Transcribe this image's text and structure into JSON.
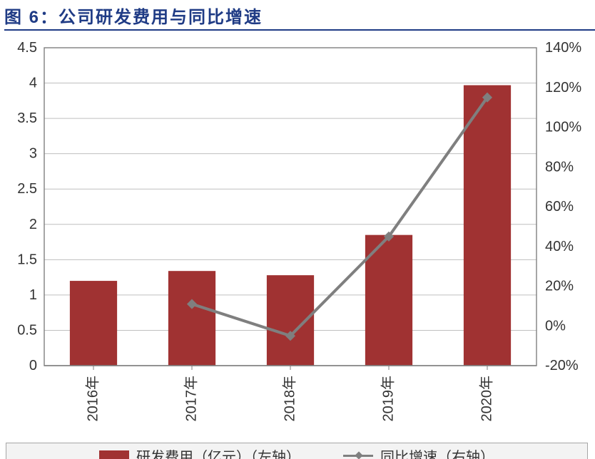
{
  "title": "图 6：公司研发费用与同比增速",
  "chart": {
    "type": "bar+line",
    "background_color": "#ffffff",
    "plot_border_color": "#7f7f7f",
    "grid_color": "#bfbfbf",
    "tick_label_color": "#333333",
    "tick_fontsize": 20,
    "x_categories": [
      "2016年",
      "2017年",
      "2018年",
      "2019年",
      "2020年"
    ],
    "left_axis": {
      "min": 0,
      "max": 4.5,
      "step": 0.5,
      "ticks": [
        "0",
        "0.5",
        "1",
        "1.5",
        "2",
        "2.5",
        "3",
        "3.5",
        "4",
        "4.5"
      ]
    },
    "right_axis": {
      "min": -20,
      "max": 140,
      "step": 20,
      "ticks": [
        "-20%",
        "0%",
        "20%",
        "40%",
        "60%",
        "80%",
        "100%",
        "120%",
        "140%"
      ]
    },
    "bars": {
      "values": [
        1.2,
        1.34,
        1.28,
        1.85,
        3.97
      ],
      "color": "#a03232",
      "bar_width_ratio": 0.48
    },
    "line": {
      "values": [
        null,
        11,
        -5,
        45,
        115
      ],
      "stroke": "#7f7f7f",
      "stroke_width": 4,
      "marker": "diamond",
      "marker_size": 10,
      "marker_fill": "#7f7f7f"
    }
  },
  "legend": {
    "bg": "#f3f3f3",
    "border": "#a6a6a6",
    "fontsize": 20,
    "items": [
      {
        "label": "研发费用（亿元）（左轴）"
      },
      {
        "label": "同比增速（右轴）"
      }
    ]
  },
  "title_color": "#1f3b85",
  "title_fontsize": 24
}
